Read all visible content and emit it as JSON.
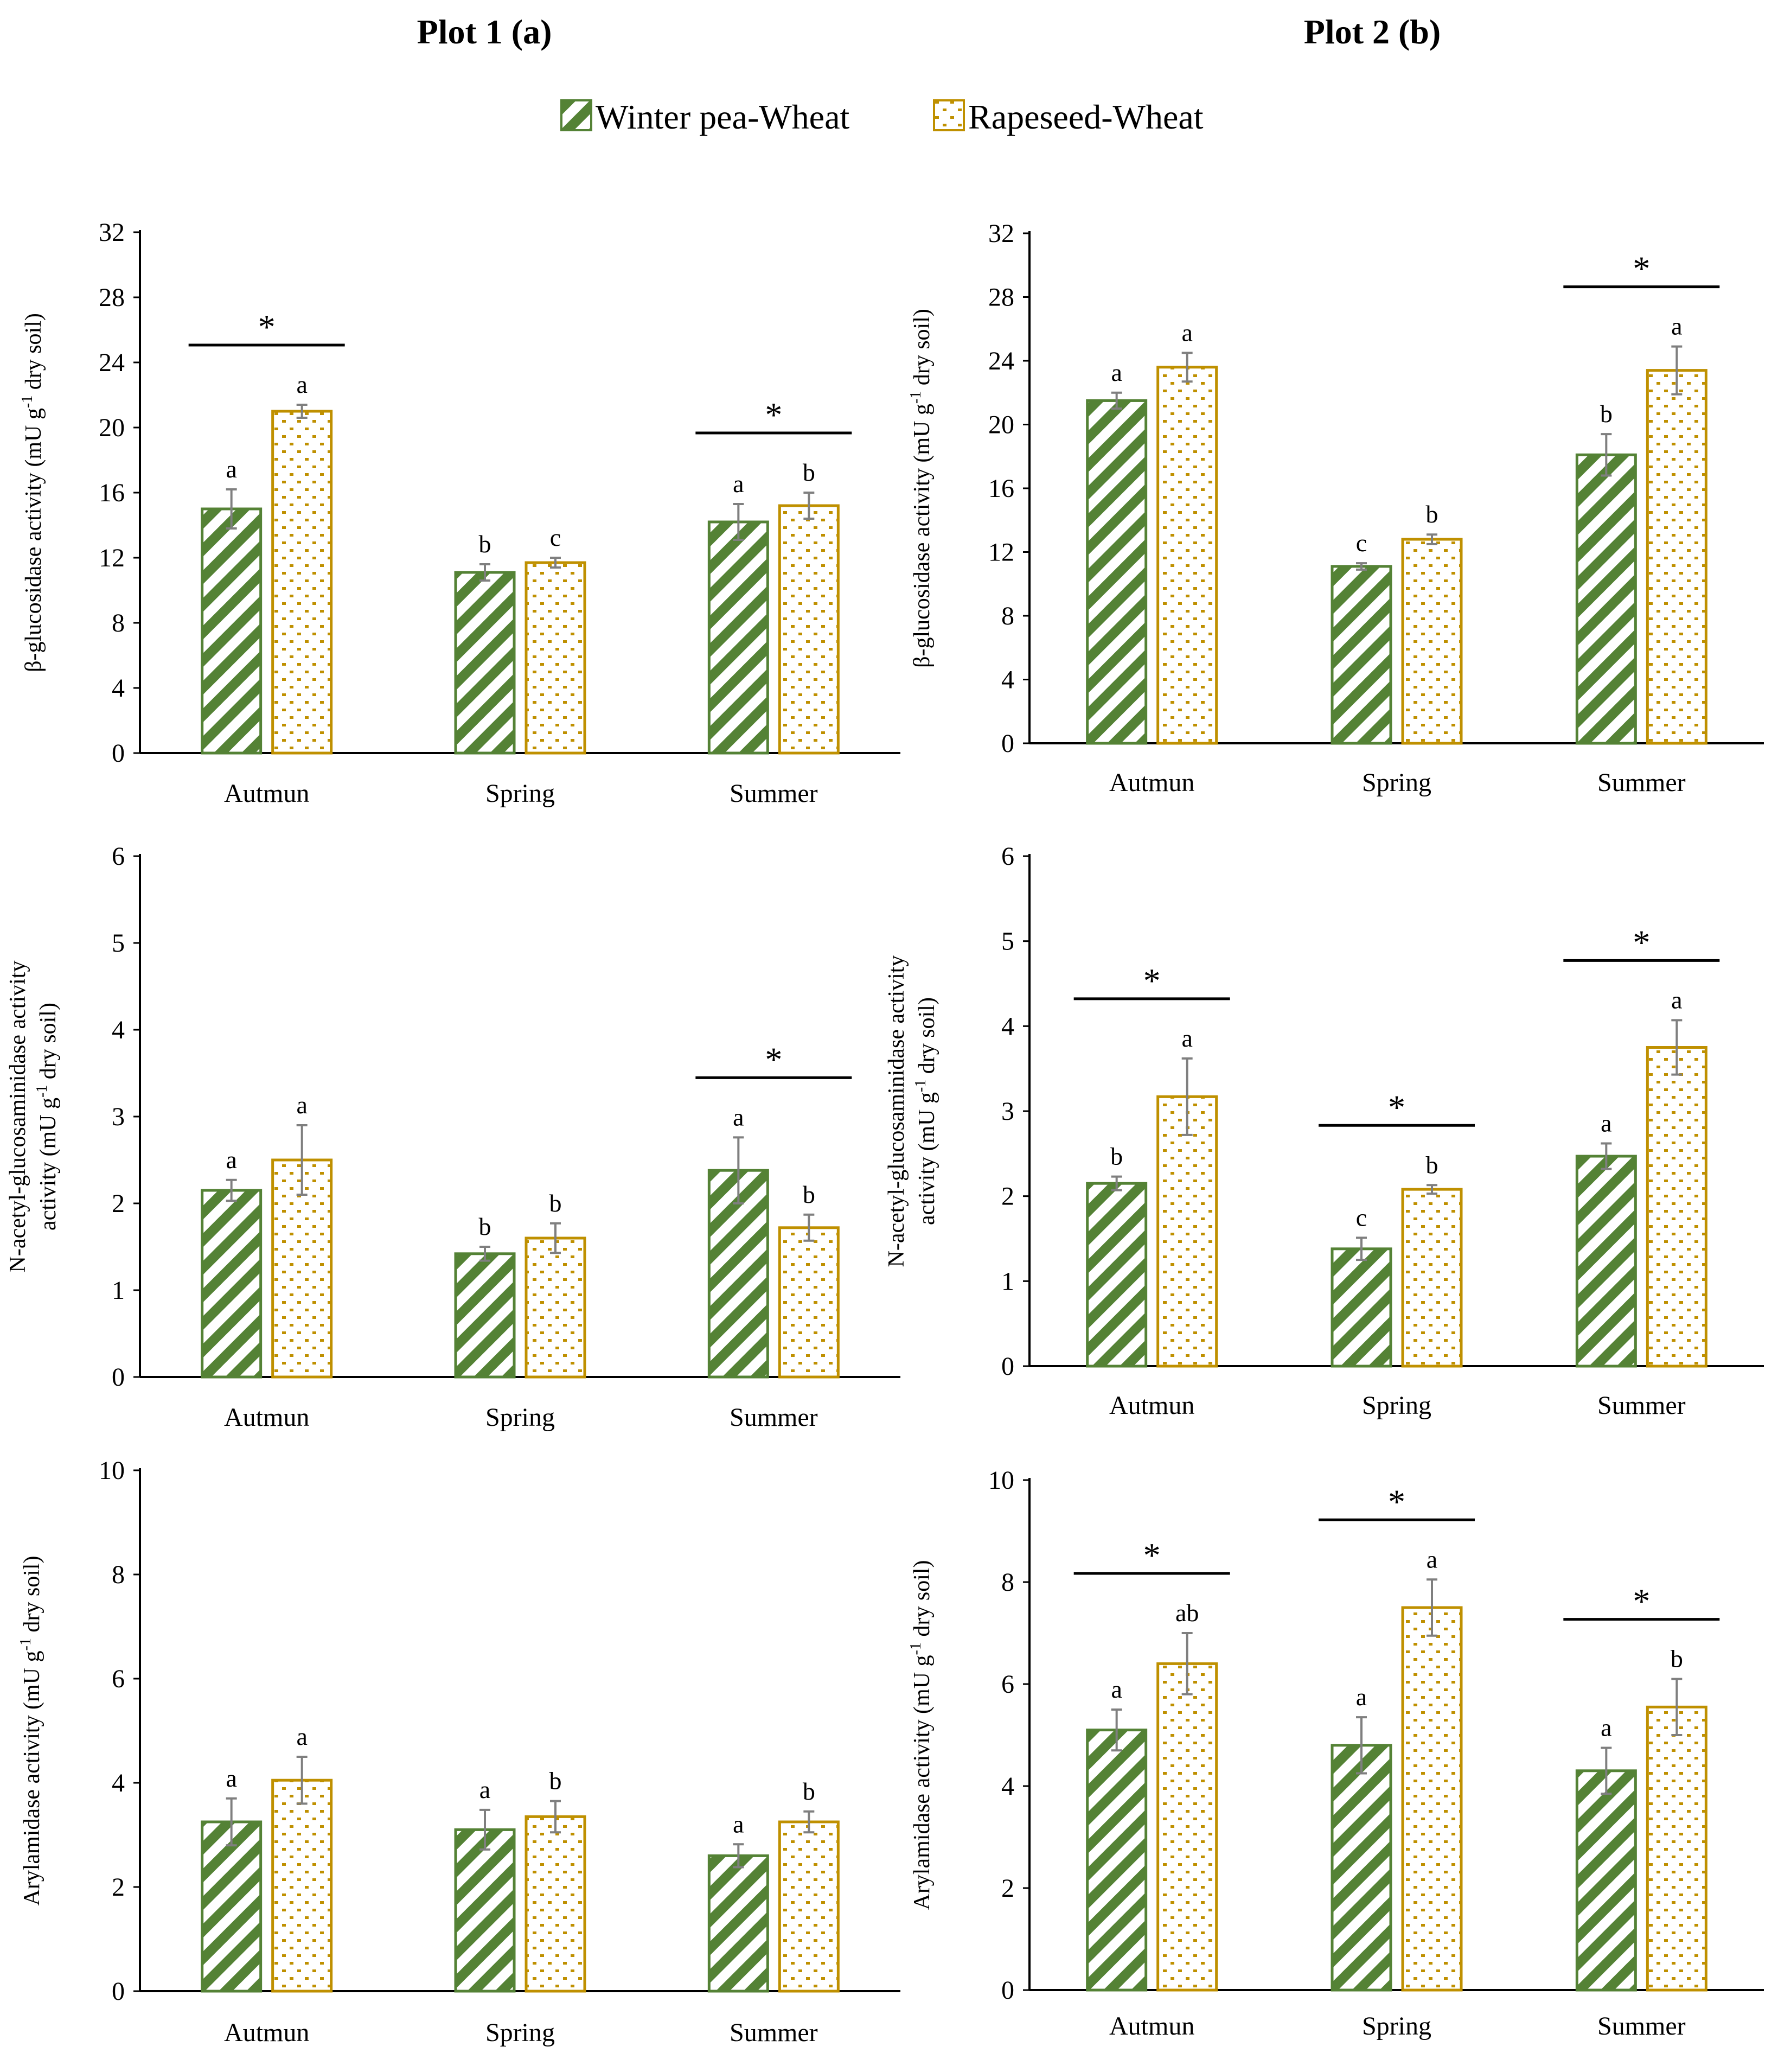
{
  "figure": {
    "col_titles": [
      "Plot 1 (a)",
      "Plot 2 (b)"
    ],
    "legend": [
      {
        "name": "Winter pea-Wheat",
        "pattern": "stripe",
        "color": "#548235"
      },
      {
        "name": "Rapeseed-Wheat",
        "pattern": "dots",
        "color": "#bf9000"
      }
    ]
  },
  "chart_data": [
    {
      "type": "bar",
      "plot": "Plot 1 (a)",
      "ylabel_lines": [
        "β-glucosidase activity (mU g",
        "-1",
        " dry soil)"
      ],
      "ylim": [
        0,
        32
      ],
      "yticks": [
        0,
        4,
        8,
        12,
        16,
        20,
        24,
        28,
        32
      ],
      "categories": [
        "Autmun",
        "Spring",
        "Summer"
      ],
      "series": [
        {
          "name": "Winter pea-Wheat",
          "values": [
            15.0,
            11.1,
            14.2
          ],
          "errors": [
            1.2,
            0.5,
            1.1
          ],
          "letters": [
            "a",
            "b",
            "a"
          ]
        },
        {
          "name": "Rapeseed-Wheat",
          "values": [
            21.0,
            11.7,
            15.2
          ],
          "errors": [
            0.4,
            0.3,
            0.8
          ],
          "letters": [
            "a",
            "c",
            "b"
          ]
        }
      ],
      "significance": [
        {
          "category": "Autmun",
          "mark": "*"
        },
        {
          "category": "Summer",
          "mark": "*"
        }
      ]
    },
    {
      "type": "bar",
      "plot": "Plot 2 (b)",
      "ylabel_lines": [
        "β-glucosidase activity (mU g",
        "-1",
        " dry soil)"
      ],
      "ylim": [
        0,
        32
      ],
      "yticks": [
        0,
        4,
        8,
        12,
        16,
        20,
        24,
        28,
        32
      ],
      "categories": [
        "Autmun",
        "Spring",
        "Summer"
      ],
      "series": [
        {
          "name": "Winter pea-Wheat",
          "values": [
            21.5,
            11.1,
            18.1
          ],
          "errors": [
            0.5,
            0.2,
            1.3
          ],
          "letters": [
            "a",
            "c",
            "b"
          ]
        },
        {
          "name": "Rapeseed-Wheat",
          "values": [
            23.6,
            12.8,
            23.4
          ],
          "errors": [
            0.9,
            0.3,
            1.5
          ],
          "letters": [
            "a",
            "b",
            "a"
          ]
        }
      ],
      "significance": [
        {
          "category": "Summer",
          "mark": "*"
        }
      ]
    },
    {
      "type": "bar",
      "plot": "Plot 1 (a)",
      "ylabel_lines": [
        "N-acetyl-glucosaminidase activity",
        "activity (mU g",
        "-1",
        " dry soil)"
      ],
      "ylim": [
        0,
        6
      ],
      "yticks": [
        0,
        1,
        2,
        3,
        4,
        5,
        6
      ],
      "categories": [
        "Autmun",
        "Spring",
        "Summer"
      ],
      "series": [
        {
          "name": "Winter pea-Wheat",
          "values": [
            2.15,
            1.42,
            2.38
          ],
          "errors": [
            0.12,
            0.08,
            0.38
          ],
          "letters": [
            "a",
            "b",
            "a"
          ]
        },
        {
          "name": "Rapeseed-Wheat",
          "values": [
            2.5,
            1.6,
            1.72
          ],
          "errors": [
            0.4,
            0.17,
            0.15
          ],
          "letters": [
            "a",
            "b",
            "b"
          ]
        }
      ],
      "significance": [
        {
          "category": "Summer",
          "mark": "*"
        }
      ]
    },
    {
      "type": "bar",
      "plot": "Plot 2 (b)",
      "ylabel_lines": [
        "N-acetyl-glucosaminidase activity",
        "activity (mU g",
        "-1",
        " dry soil)"
      ],
      "ylim": [
        0,
        6
      ],
      "yticks": [
        0,
        1,
        2,
        3,
        4,
        5,
        6
      ],
      "categories": [
        "Autmun",
        "Spring",
        "Summer"
      ],
      "series": [
        {
          "name": "Winter pea-Wheat",
          "values": [
            2.15,
            1.38,
            2.47
          ],
          "errors": [
            0.08,
            0.13,
            0.15
          ],
          "letters": [
            "b",
            "c",
            "a"
          ]
        },
        {
          "name": "Rapeseed-Wheat",
          "values": [
            3.17,
            2.08,
            3.75
          ],
          "errors": [
            0.45,
            0.05,
            0.32
          ],
          "letters": [
            "a",
            "b",
            "a"
          ]
        }
      ],
      "significance": [
        {
          "category": "Autmun",
          "mark": "*"
        },
        {
          "category": "Spring",
          "mark": "*"
        },
        {
          "category": "Summer",
          "mark": "*"
        }
      ]
    },
    {
      "type": "bar",
      "plot": "Plot 1 (a)",
      "ylabel_lines": [
        "Arylamidase activity (mU g",
        "-1",
        " dry soil)"
      ],
      "ylim": [
        0,
        10
      ],
      "yticks": [
        0,
        2,
        4,
        6,
        8,
        10
      ],
      "categories": [
        "Autmun",
        "Spring",
        "Summer"
      ],
      "series": [
        {
          "name": "Winter pea-Wheat",
          "values": [
            3.25,
            3.1,
            2.6
          ],
          "errors": [
            0.45,
            0.38,
            0.22
          ],
          "letters": [
            "a",
            "a",
            "a"
          ]
        },
        {
          "name": "Rapeseed-Wheat",
          "values": [
            4.05,
            3.35,
            3.25
          ],
          "errors": [
            0.45,
            0.3,
            0.2
          ],
          "letters": [
            "a",
            "b",
            "b"
          ]
        }
      ],
      "significance": []
    },
    {
      "type": "bar",
      "plot": "Plot 2 (b)",
      "ylabel_lines": [
        "Arylamidase activity (mU g",
        "-1",
        " dry soil)"
      ],
      "ylim": [
        0,
        10
      ],
      "yticks": [
        0,
        2,
        4,
        6,
        8,
        10
      ],
      "categories": [
        "Autmun",
        "Spring",
        "Summer"
      ],
      "series": [
        {
          "name": "Winter pea-Wheat",
          "values": [
            5.1,
            4.8,
            4.3
          ],
          "errors": [
            0.4,
            0.55,
            0.45
          ],
          "letters": [
            "a",
            "a",
            "a"
          ]
        },
        {
          "name": "Rapeseed-Wheat",
          "values": [
            6.4,
            7.5,
            5.55
          ],
          "errors": [
            0.6,
            0.55,
            0.55
          ],
          "letters": [
            "ab",
            "a",
            "b"
          ]
        }
      ],
      "significance": [
        {
          "category": "Autmun",
          "mark": "*"
        },
        {
          "category": "Spring",
          "mark": "*"
        },
        {
          "category": "Summer",
          "mark": "*"
        }
      ]
    }
  ]
}
